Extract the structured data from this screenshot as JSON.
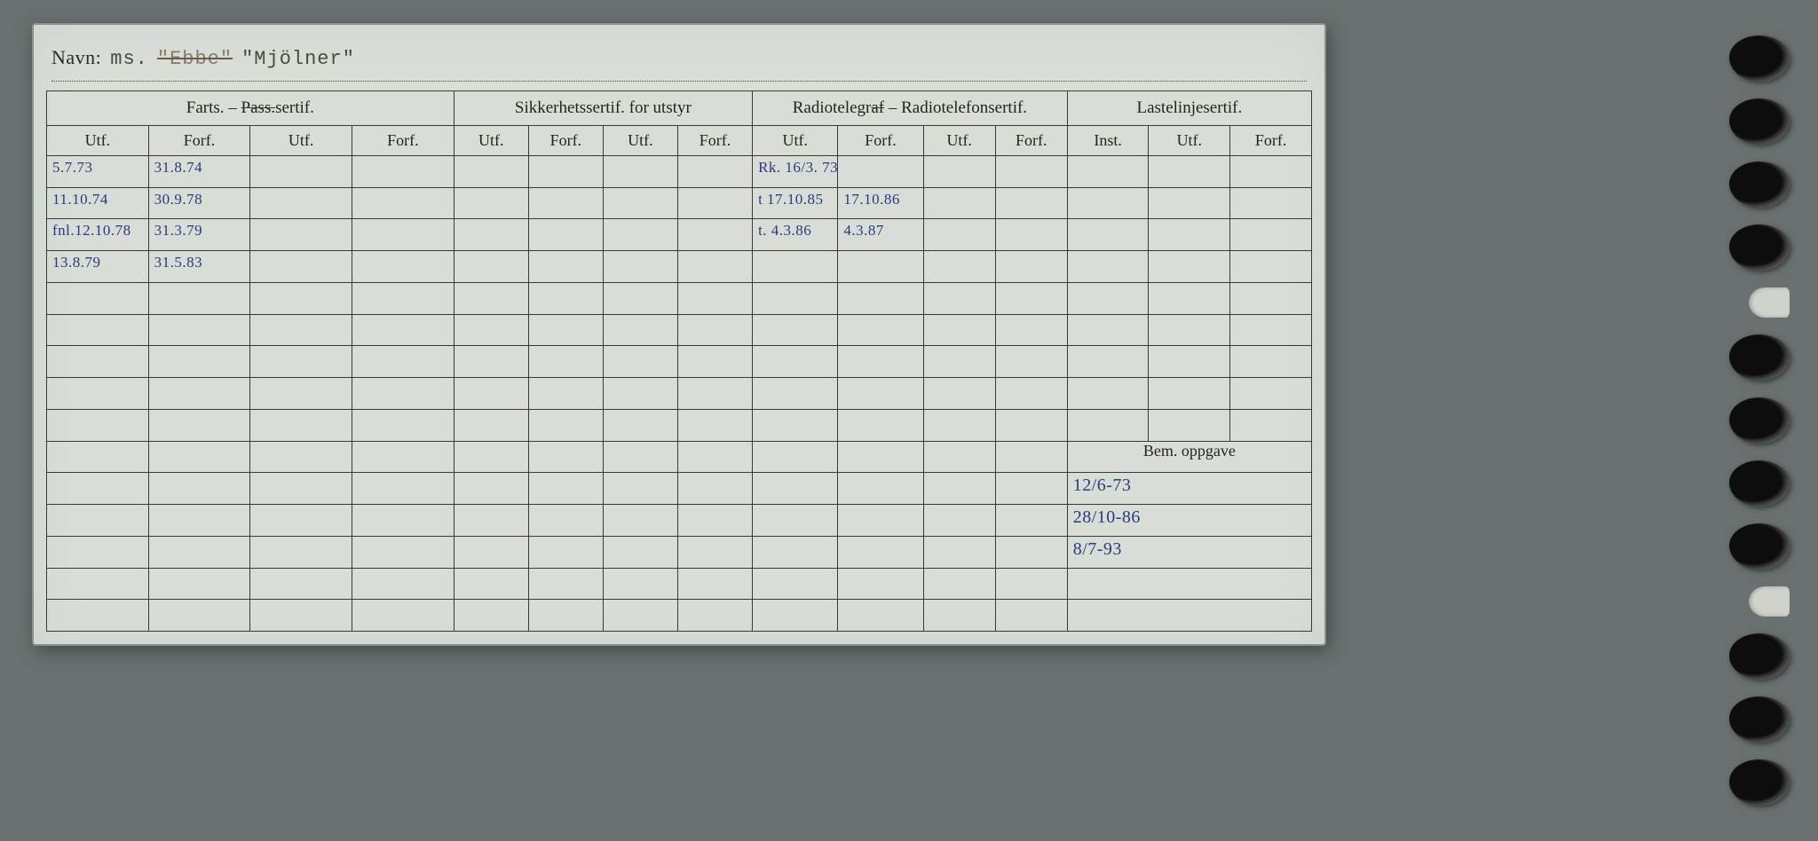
{
  "background_color": "#6a7070",
  "card": {
    "background_color": "#d9ddd7",
    "border_color": "#8d928b"
  },
  "navn": {
    "label": "Navn:",
    "prefix": "ms.",
    "struck_name": "\"Ebbe\"",
    "name": "\"Mjölner\""
  },
  "headers": {
    "group1": "Farts. – Pass.sertif.",
    "group1_strike_word": "Pass.",
    "group2": "Sikkerhetssertif. for utstyr",
    "group3": "Radiotelegraf – Radiotelefonsertif.",
    "group3_strike_word": "af",
    "group4": "Lastelinjesertif.",
    "utf": "Utf.",
    "forf": "Forf.",
    "inst": "Inst.",
    "bem": "Bem. oppgave"
  },
  "ink_color": "#2b3a7a",
  "farts_rows": [
    {
      "utf": "5.7.73",
      "forf": "31.8.74"
    },
    {
      "utf": "11.10.74",
      "forf": "30.9.78"
    },
    {
      "utf": "fnl.12.10.78",
      "forf": "31.3.79"
    },
    {
      "utf": "13.8.79",
      "forf": "31.5.83"
    }
  ],
  "radio_rows": [
    {
      "utf": "Rk. 16/3. 73",
      "forf": ""
    },
    {
      "utf": "t 17.10.85",
      "forf": "17.10.86"
    },
    {
      "utf": "t. 4.3.86",
      "forf": "4.3.87"
    }
  ],
  "bem_rows": [
    "12/6-73",
    "28/10-86",
    "8/7-93"
  ],
  "row_count_upper": 9,
  "row_count_lower": 5,
  "holes_count": 13
}
